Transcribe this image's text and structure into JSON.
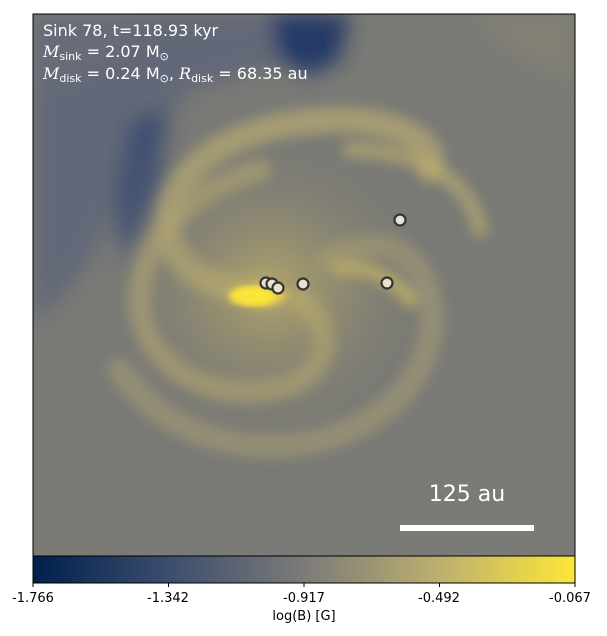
{
  "panel": {
    "line1": "Sink 78, t=118.93 kyr",
    "line2_symbol": "M",
    "line2_sub": "sink",
    "line2_value": " = 2.07 M",
    "line2_unit_sub": "⊙",
    "line3_symbol": "M",
    "line3_sub": "disk",
    "line3_value": " = 0.24 M",
    "line3_unit_sub": "⊙",
    "line3_sep": ", ",
    "line3_symbol2": "R",
    "line3_sub2": "disk",
    "line3_value2": " = 68.35 au"
  },
  "scale_bar": {
    "label": "125 au"
  },
  "colorbar": {
    "label": "log(B) [G]",
    "ticks": [
      "-1.766",
      "-1.342",
      "-0.917",
      "-0.492",
      "-0.067"
    ],
    "colormap": "cividis",
    "color_low": "#00204c",
    "color_mid": "#7c7b78",
    "color_high": "#fde737"
  },
  "sinks": {
    "marker_fill": "#e8e2d0",
    "marker_edge": "#333333"
  }
}
